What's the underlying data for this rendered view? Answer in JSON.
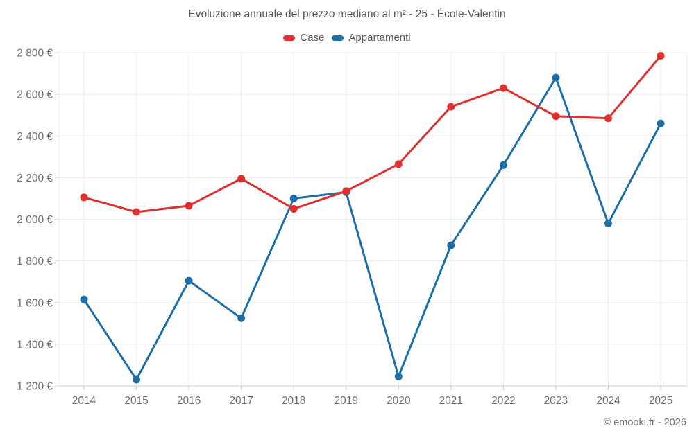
{
  "chart_data": {
    "type": "line",
    "title": "Evoluzione annuale del prezzo mediano al m² - 25 - École-Valentin",
    "x": [
      2014,
      2015,
      2016,
      2017,
      2018,
      2019,
      2020,
      2021,
      2022,
      2023,
      2024,
      2025
    ],
    "series": [
      {
        "name": "Case",
        "color": "#e02f2f",
        "values": [
          2105,
          2035,
          2065,
          2195,
          2050,
          2135,
          2265,
          2540,
          2630,
          2495,
          2485,
          2785
        ]
      },
      {
        "name": "Appartamenti",
        "color": "#1a6fa8",
        "values": [
          1615,
          1230,
          1705,
          1525,
          2100,
          2130,
          1245,
          1875,
          2260,
          2680,
          1980,
          2460
        ]
      }
    ],
    "ylim": [
      1200,
      2800
    ],
    "ytick_step": 200,
    "ytick_suffix": " €",
    "xlabel": "",
    "ylabel": "",
    "grid": true,
    "legend_position": "top"
  },
  "attribution": "© emooki.fr - 2026",
  "colors": {
    "grid": "#ededed",
    "axis": "#c9c9c9",
    "y_tick": "#dddddd",
    "text": "#6e6e6e"
  }
}
